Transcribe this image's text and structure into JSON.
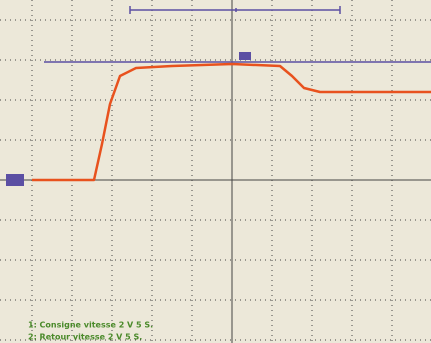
{
  "chart_data": {
    "type": "line",
    "xlim": [
      0,
      10
    ],
    "ylim": [
      -4,
      4
    ],
    "series": [
      {
        "name": "1: Consigne vitesse 2 V 5 S.",
        "color": "#5b4fa3",
        "x": [
          0.3,
          2.0,
          4.0,
          6.0,
          8.0,
          10.0
        ],
        "values": [
          2.95,
          2.95,
          2.95,
          2.95,
          2.95,
          2.95
        ]
      },
      {
        "name": "2: Retour vitesse 2 V 5 S.",
        "color": "#e8521e",
        "x": [
          0,
          1.55,
          1.75,
          1.95,
          2.2,
          2.6,
          3.5,
          5.0,
          6.2,
          6.5,
          6.8,
          7.2,
          8.5,
          10
        ],
        "values": [
          0,
          0,
          0.9,
          1.9,
          2.6,
          2.8,
          2.85,
          2.9,
          2.85,
          2.6,
          2.3,
          2.2,
          2.2,
          2.2
        ]
      }
    ]
  }
}
